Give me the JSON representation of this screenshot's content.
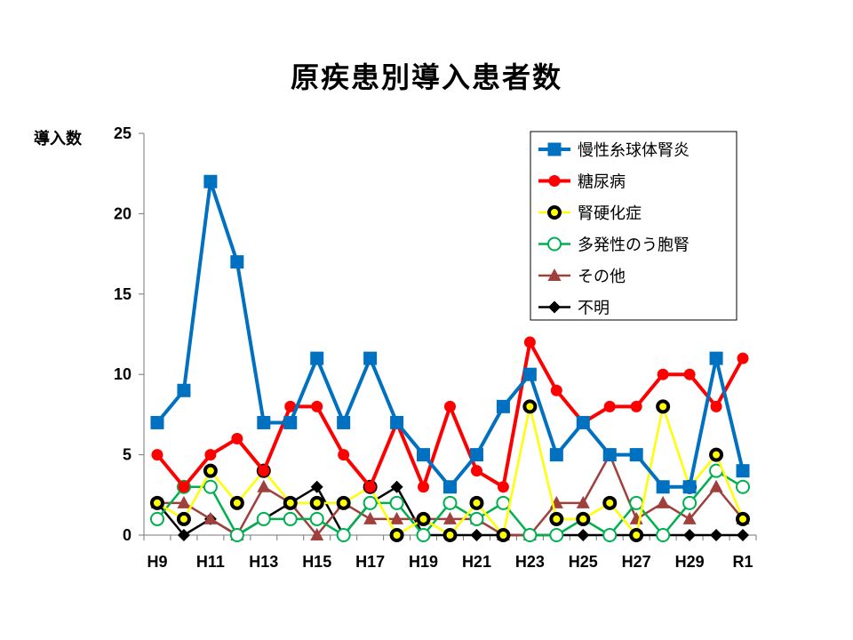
{
  "chart_data": {
    "type": "line",
    "title": "原疾患別導入患者数",
    "ylabel": "導入数",
    "xlabel": "",
    "ylim": [
      0,
      25
    ],
    "yticks": [
      0,
      5,
      10,
      15,
      20,
      25
    ],
    "categories": [
      "H9",
      "H10",
      "H11",
      "H12",
      "H13",
      "H14",
      "H15",
      "H16",
      "H17",
      "H18",
      "H19",
      "H20",
      "H21",
      "H22",
      "H23",
      "H24",
      "H25",
      "H26",
      "H27",
      "H28",
      "H29",
      "H30",
      "R1"
    ],
    "tick_labels": [
      "H9",
      "",
      "H11",
      "",
      "H13",
      "",
      "H15",
      "",
      "H17",
      "",
      "H19",
      "",
      "H21",
      "",
      "H23",
      "",
      "H25",
      "",
      "H27",
      "",
      "H29",
      "",
      "R1"
    ],
    "legend_position": "top-right",
    "grid": false,
    "series": [
      {
        "name": "慢性糸球体腎炎",
        "color": "#0070C0",
        "marker": "square",
        "values": [
          7,
          9,
          22,
          17,
          7,
          7,
          11,
          7,
          11,
          7,
          5,
          3,
          5,
          8,
          10,
          5,
          7,
          5,
          5,
          3,
          3,
          11,
          4
        ]
      },
      {
        "name": "糖尿病",
        "color": "#FF0000",
        "marker": "circle",
        "values": [
          5,
          3,
          5,
          6,
          4,
          8,
          8,
          5,
          3,
          7,
          3,
          8,
          4,
          3,
          12,
          9,
          7,
          8,
          8,
          10,
          10,
          8,
          11
        ]
      },
      {
        "name": "腎硬化症",
        "color": "#FFFF00",
        "marker": "ring-black",
        "values": [
          2,
          1,
          4,
          2,
          4,
          2,
          2,
          2,
          3,
          0,
          1,
          0,
          2,
          0,
          8,
          1,
          1,
          2,
          0,
          8,
          3,
          5,
          1
        ]
      },
      {
        "name": "多発性のう胞腎",
        "color": "#00B050",
        "marker": "circle-open",
        "values": [
          1,
          3,
          3,
          0,
          1,
          1,
          1,
          0,
          2,
          2,
          0,
          2,
          1,
          2,
          0,
          0,
          1,
          0,
          2,
          0,
          2,
          4,
          3
        ]
      },
      {
        "name": "その他",
        "color": "#A0403C",
        "marker": "triangle",
        "values": [
          2,
          2,
          1,
          0,
          3,
          2,
          0,
          2,
          1,
          1,
          1,
          1,
          1,
          0,
          0,
          2,
          2,
          5,
          1,
          2,
          1,
          3,
          1
        ]
      },
      {
        "name": "不明",
        "color": "#000000",
        "marker": "diamond",
        "values": [
          2,
          0,
          1,
          0,
          1,
          2,
          3,
          0,
          2,
          3,
          0,
          0,
          0,
          0,
          0,
          0,
          0,
          0,
          0,
          0,
          0,
          0,
          0
        ]
      }
    ]
  }
}
